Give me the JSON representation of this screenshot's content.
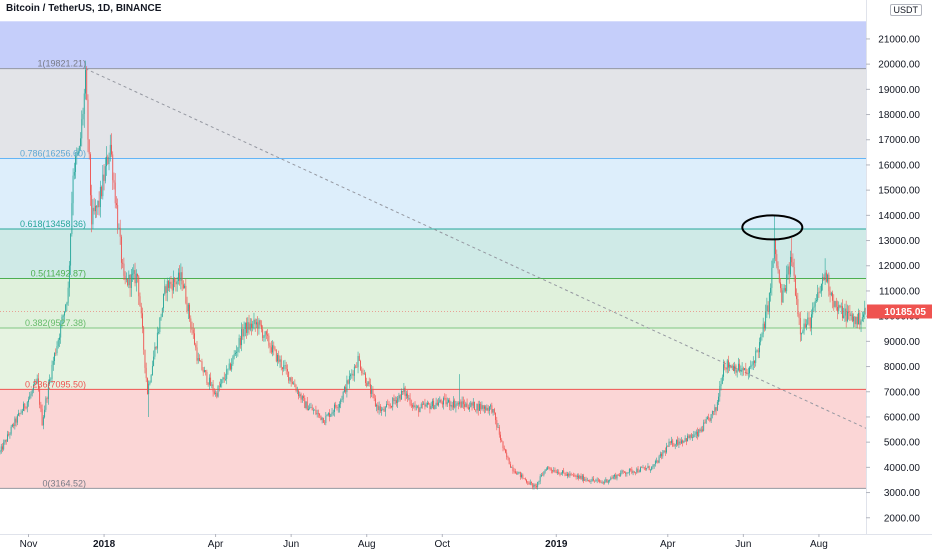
{
  "header": {
    "title": "Bitcoin / TetherUS, 1D, BINANCE"
  },
  "axis": {
    "unit": "USDT"
  },
  "chart_data": {
    "type": "candlestick",
    "title": "Bitcoin / TetherUS, 1D, BINANCE",
    "ylim": [
      1800,
      21700
    ],
    "xlim": [
      "2017-10-09",
      "2019-09-08"
    ],
    "y_ticks": [
      "2000.00",
      "3000.00",
      "4000.00",
      "5000.00",
      "6000.00",
      "7000.00",
      "8000.00",
      "9000.00",
      "10000.00",
      "11000.00",
      "12000.00",
      "13000.00",
      "14000.00",
      "15000.00",
      "16000.00",
      "17000.00",
      "18000.00",
      "19000.00",
      "20000.00",
      "21000.00"
    ],
    "x_ticks": [
      {
        "label": "Nov",
        "date": "2017-11-01",
        "bold": false
      },
      {
        "label": "2018",
        "date": "2018-01-01",
        "bold": true
      },
      {
        "label": "Apr",
        "date": "2018-04-01",
        "bold": false
      },
      {
        "label": "Jun",
        "date": "2018-06-01",
        "bold": false
      },
      {
        "label": "Aug",
        "date": "2018-08-01",
        "bold": false
      },
      {
        "label": "Oct",
        "date": "2018-10-01",
        "bold": false
      },
      {
        "label": "2019",
        "date": "2019-01-01",
        "bold": true
      },
      {
        "label": "Apr",
        "date": "2019-04-01",
        "bold": false
      },
      {
        "label": "Jun",
        "date": "2019-06-01",
        "bold": false
      },
      {
        "label": "Aug",
        "date": "2019-08-01",
        "bold": false
      }
    ],
    "current_price": {
      "label": "10185.05",
      "value": 10185.05,
      "color": "#ef5350"
    },
    "fib_levels": [
      {
        "label": "1(19821.21)",
        "value": 19821.21,
        "line": "#9598a1",
        "text": "#787b86"
      },
      {
        "label": "0.786(16256.60)",
        "value": 16256.6,
        "line": "#64b5f6",
        "text": "#5fa8d3"
      },
      {
        "label": "0.618(13458.36)",
        "value": 13458.36,
        "line": "#26a69a",
        "text": "#26a69a"
      },
      {
        "label": "0.5(11492.87)",
        "value": 11492.87,
        "line": "#4caf50",
        "text": "#4caf50"
      },
      {
        "label": "0.382(9527.38)",
        "value": 9527.38,
        "line": "#81c784",
        "text": "#66bb6a"
      },
      {
        "label": "0.236(7095.50)",
        "value": 7095.5,
        "line": "#ef5350",
        "text": "#ef5350"
      },
      {
        "label": "0(3164.52)",
        "value": 3164.52,
        "line": "#9598a1",
        "text": "#787b86"
      }
    ],
    "fib_bands": [
      {
        "from": 19821.21,
        "to": 21700,
        "color": "#c5cefa"
      },
      {
        "from": 16256.6,
        "to": 19821.21,
        "color": "#e3e4e8"
      },
      {
        "from": 13458.36,
        "to": 16256.6,
        "color": "#ddeefb"
      },
      {
        "from": 11492.87,
        "to": 13458.36,
        "color": "#cfeae7"
      },
      {
        "from": 9527.38,
        "to": 11492.87,
        "color": "#e0f1dc"
      },
      {
        "from": 7095.5,
        "to": 9527.38,
        "color": "#e6f3e1"
      },
      {
        "from": 3164.52,
        "to": 7095.5,
        "color": "#fbd6d6"
      }
    ],
    "trend_line": {
      "from": {
        "date": "2017-12-17",
        "value": 19821.21
      },
      "to": {
        "date": "2019-09-08",
        "value": 5550
      },
      "color": "#9598a1"
    },
    "annotation_circle": {
      "date": "2019-06-26",
      "value": 13600
    },
    "up_color": "#26a69a",
    "down_color": "#ef5350",
    "price_path": [
      {
        "date": "2017-10-09",
        "value": 4600
      },
      {
        "date": "2017-10-20",
        "value": 5700
      },
      {
        "date": "2017-11-01",
        "value": 6700
      },
      {
        "date": "2017-11-08",
        "value": 7400
      },
      {
        "date": "2017-11-12",
        "value": 5800
      },
      {
        "date": "2017-11-20",
        "value": 8000
      },
      {
        "date": "2017-11-28",
        "value": 9800
      },
      {
        "date": "2017-12-03",
        "value": 11000
      },
      {
        "date": "2017-12-07",
        "value": 15800
      },
      {
        "date": "2017-12-12",
        "value": 16500
      },
      {
        "date": "2017-12-17",
        "value": 19300
      },
      {
        "date": "2017-12-22",
        "value": 13800
      },
      {
        "date": "2017-12-28",
        "value": 14500
      },
      {
        "date": "2018-01-06",
        "value": 16800
      },
      {
        "date": "2018-01-12",
        "value": 13800
      },
      {
        "date": "2018-01-17",
        "value": 11300
      },
      {
        "date": "2018-01-28",
        "value": 11600
      },
      {
        "date": "2018-02-05",
        "value": 7000
      },
      {
        "date": "2018-02-20",
        "value": 11200
      },
      {
        "date": "2018-03-05",
        "value": 11500
      },
      {
        "date": "2018-03-18",
        "value": 8200
      },
      {
        "date": "2018-04-01",
        "value": 6900
      },
      {
        "date": "2018-04-12",
        "value": 7900
      },
      {
        "date": "2018-04-24",
        "value": 9500
      },
      {
        "date": "2018-05-05",
        "value": 9700
      },
      {
        "date": "2018-05-20",
        "value": 8400
      },
      {
        "date": "2018-06-01",
        "value": 7500
      },
      {
        "date": "2018-06-12",
        "value": 6500
      },
      {
        "date": "2018-06-28",
        "value": 5900
      },
      {
        "date": "2018-07-10",
        "value": 6600
      },
      {
        "date": "2018-07-25",
        "value": 8300
      },
      {
        "date": "2018-08-08",
        "value": 6500
      },
      {
        "date": "2018-08-14",
        "value": 6200
      },
      {
        "date": "2018-08-31",
        "value": 7000
      },
      {
        "date": "2018-09-10",
        "value": 6300
      },
      {
        "date": "2018-10-01",
        "value": 6600
      },
      {
        "date": "2018-10-15",
        "value": 6500
      },
      {
        "date": "2018-11-10",
        "value": 6350
      },
      {
        "date": "2018-11-15",
        "value": 5500
      },
      {
        "date": "2018-11-20",
        "value": 4600
      },
      {
        "date": "2018-11-26",
        "value": 4000
      },
      {
        "date": "2018-12-07",
        "value": 3500
      },
      {
        "date": "2018-12-15",
        "value": 3200
      },
      {
        "date": "2018-12-24",
        "value": 4000
      },
      {
        "date": "2019-01-10",
        "value": 3700
      },
      {
        "date": "2019-02-07",
        "value": 3400
      },
      {
        "date": "2019-02-24",
        "value": 3800
      },
      {
        "date": "2019-03-20",
        "value": 4000
      },
      {
        "date": "2019-04-02",
        "value": 4900
      },
      {
        "date": "2019-04-25",
        "value": 5300
      },
      {
        "date": "2019-05-10",
        "value": 6300
      },
      {
        "date": "2019-05-16",
        "value": 8100
      },
      {
        "date": "2019-05-25",
        "value": 8000
      },
      {
        "date": "2019-06-05",
        "value": 7700
      },
      {
        "date": "2019-06-15",
        "value": 9000
      },
      {
        "date": "2019-06-22",
        "value": 10700
      },
      {
        "date": "2019-06-26",
        "value": 12800
      },
      {
        "date": "2019-07-02",
        "value": 10600
      },
      {
        "date": "2019-07-10",
        "value": 12300
      },
      {
        "date": "2019-07-17",
        "value": 9500
      },
      {
        "date": "2019-07-25",
        "value": 9800
      },
      {
        "date": "2019-08-06",
        "value": 11700
      },
      {
        "date": "2019-08-15",
        "value": 10300
      },
      {
        "date": "2019-08-22",
        "value": 10100
      },
      {
        "date": "2019-09-01",
        "value": 9800
      },
      {
        "date": "2019-09-08",
        "value": 10200
      }
    ],
    "price_spikes": [
      {
        "date": "2017-12-17",
        "value": 19800
      },
      {
        "date": "2018-01-06",
        "value": 17200
      },
      {
        "date": "2018-02-06",
        "value": 6000
      },
      {
        "date": "2018-03-05",
        "value": 11700
      },
      {
        "date": "2018-05-05",
        "value": 10000
      },
      {
        "date": "2018-07-25",
        "value": 8500
      },
      {
        "date": "2018-10-15",
        "value": 7700
      },
      {
        "date": "2018-12-15",
        "value": 3160
      },
      {
        "date": "2019-06-26",
        "value": 13970
      },
      {
        "date": "2019-07-10",
        "value": 13100
      },
      {
        "date": "2019-07-17",
        "value": 9100
      },
      {
        "date": "2019-08-06",
        "value": 12300
      }
    ]
  }
}
